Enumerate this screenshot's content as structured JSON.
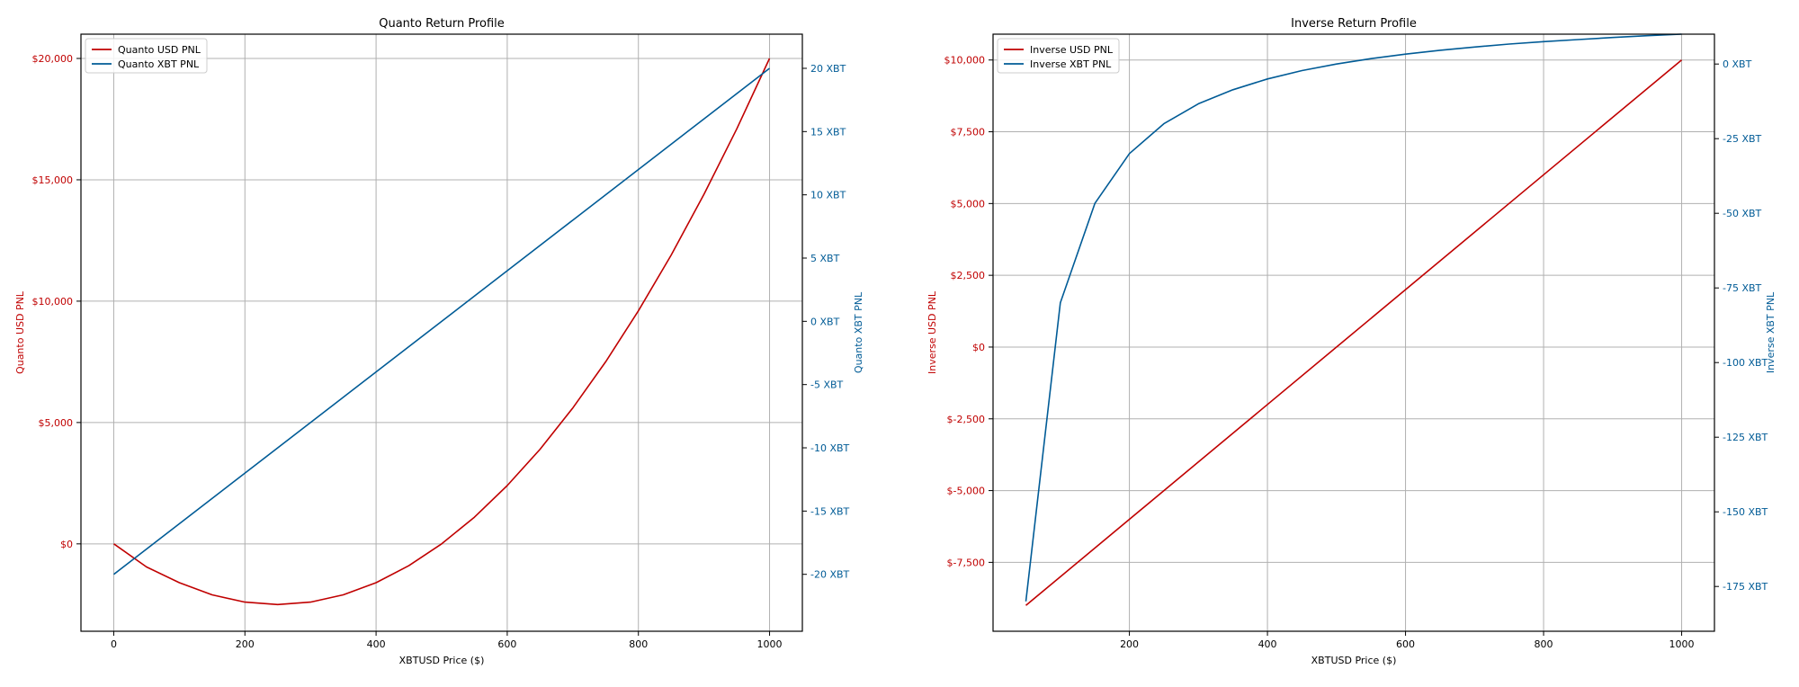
{
  "colors": {
    "usd": "#c00000",
    "xbt": "#005b96",
    "grid": "#b0b0b0",
    "axis": "#000000"
  },
  "chart_data": [
    {
      "type": "line",
      "title": "Quanto Return Profile",
      "xlabel": "XBTUSD Price ($)",
      "ylabel": "Quanto USD PNL",
      "y2label": "Quanto XBT PNL",
      "grid": true,
      "legend_position": "top-left",
      "xlim": [
        -50,
        1050
      ],
      "x_ticks": [
        0,
        200,
        400,
        600,
        800,
        1000
      ],
      "x_tick_labels": [
        "0",
        "200",
        "400",
        "600",
        "800",
        "1000"
      ],
      "ylim": [
        -3600,
        21000
      ],
      "y_ticks": [
        0,
        5000,
        10000,
        15000,
        20000
      ],
      "y_tick_labels": [
        "$0",
        "$5,000",
        "$10,000",
        "$15,000",
        "$20,000"
      ],
      "y2lim": [
        -24.5,
        22.7
      ],
      "y2_ticks": [
        -20,
        -15,
        -10,
        -5,
        0,
        5,
        10,
        15,
        20
      ],
      "y2_tick_labels": [
        "-20 XBT",
        "-15 XBT",
        "-10 XBT",
        "-5 XBT",
        "0 XBT",
        "5 XBT",
        "10 XBT",
        "15 XBT",
        "20 XBT"
      ],
      "series": [
        {
          "name": "Quanto USD PNL",
          "axis": "left",
          "color": "#c00000",
          "x": [
            0,
            50,
            100,
            150,
            200,
            250,
            300,
            350,
            400,
            450,
            500,
            550,
            600,
            650,
            700,
            750,
            800,
            850,
            900,
            950,
            1000
          ],
          "y": [
            0,
            -950,
            -1600,
            -2100,
            -2400,
            -2500,
            -2400,
            -2100,
            -1600,
            -900,
            0,
            1100,
            2400,
            3900,
            5600,
            7500,
            9600,
            11900,
            14400,
            17100,
            20000
          ]
        },
        {
          "name": "Quanto XBT PNL",
          "axis": "right",
          "color": "#005b96",
          "x": [
            0,
            1000
          ],
          "y": [
            -20,
            20
          ]
        }
      ]
    },
    {
      "type": "line",
      "title": "Inverse Return Profile",
      "xlabel": "XBTUSD Price ($)",
      "ylabel": "Inverse USD PNL",
      "y2label": "Inverse XBT PNL",
      "grid": true,
      "legend_position": "top-left",
      "xlim": [
        2.5,
        1047.5
      ],
      "x_ticks": [
        200,
        400,
        600,
        800,
        1000
      ],
      "x_tick_labels": [
        "200",
        "400",
        "600",
        "800",
        "1000"
      ],
      "ylim": [
        -9900,
        10900
      ],
      "y_ticks": [
        -7500,
        -5000,
        -2500,
        0,
        2500,
        5000,
        7500,
        10000
      ],
      "y_tick_labels": [
        "$-7,500",
        "$-5,000",
        "$-2,500",
        "$0",
        "$2,500",
        "$5,000",
        "$7,500",
        "$10,000"
      ],
      "y2lim": [
        -190,
        10
      ],
      "y2_ticks": [
        -175,
        -150,
        -125,
        -100,
        -75,
        -50,
        -25,
        0
      ],
      "y2_tick_labels": [
        "-175 XBT",
        "-150 XBT",
        "-125 XBT",
        "-100 XBT",
        "-75 XBT",
        "-50 XBT",
        "-25 XBT",
        "0 XBT"
      ],
      "series": [
        {
          "name": "Inverse USD PNL",
          "axis": "left",
          "color": "#c00000",
          "x": [
            50,
            1000
          ],
          "y": [
            -9000,
            10000
          ]
        },
        {
          "name": "Inverse XBT PNL",
          "axis": "right",
          "color": "#005b96",
          "x": [
            50,
            100,
            150,
            200,
            250,
            300,
            350,
            400,
            450,
            500,
            550,
            600,
            650,
            700,
            750,
            800,
            850,
            900,
            950,
            1000
          ],
          "y": [
            -180,
            -80,
            -46.7,
            -30,
            -20,
            -13.3,
            -8.6,
            -5,
            -2.2,
            0,
            1.8,
            3.3,
            4.6,
            5.7,
            6.7,
            7.5,
            8.2,
            8.9,
            9.5,
            10
          ]
        }
      ]
    }
  ]
}
